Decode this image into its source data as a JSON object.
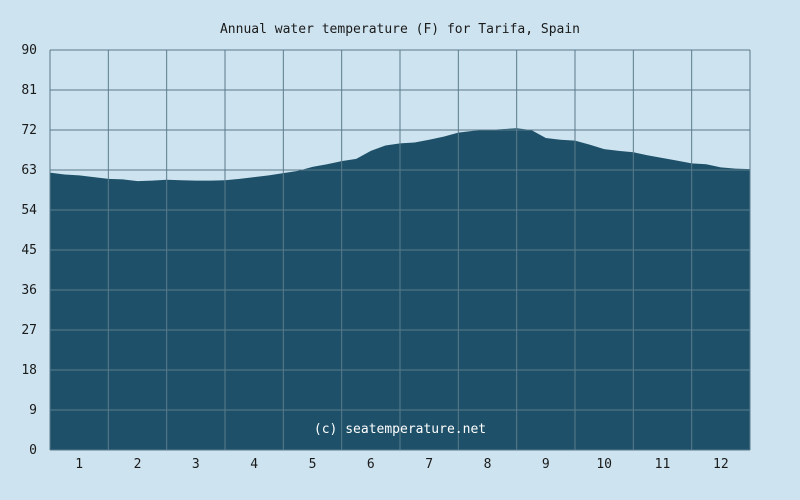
{
  "chart_data": {
    "type": "area",
    "title": "Annual water temperature (F) for Tarifa, Spain",
    "xlabel": "",
    "ylabel": "",
    "x_tick_labels": [
      "1",
      "2",
      "3",
      "4",
      "5",
      "6",
      "7",
      "8",
      "9",
      "10",
      "11",
      "12"
    ],
    "y_tick_labels": [
      "0",
      "9",
      "18",
      "27",
      "36",
      "45",
      "54",
      "63",
      "72",
      "81",
      "90"
    ],
    "ylim": [
      0,
      90
    ],
    "xlim": [
      0.5,
      12.5
    ],
    "grid": true,
    "series": [
      {
        "x": [
          0.5,
          0.75,
          1.0,
          1.25,
          1.5,
          1.75,
          2.0,
          2.25,
          2.5,
          2.75,
          3.0,
          3.25,
          3.5,
          3.75,
          4.0,
          4.25,
          4.5,
          4.75,
          5.0,
          5.25,
          5.5,
          5.75,
          6.0,
          6.25,
          6.5,
          6.75,
          7.0,
          7.25,
          7.5,
          7.75,
          8.0,
          8.25,
          8.5,
          8.75,
          9.0,
          9.25,
          9.5,
          9.75,
          10.0,
          10.25,
          10.5,
          10.75,
          11.0,
          11.25,
          11.5,
          11.75,
          12.0,
          12.25,
          12.5
        ],
        "values": [
          62.4,
          62.0,
          61.8,
          61.4,
          61.0,
          60.9,
          60.5,
          60.6,
          60.8,
          60.7,
          60.6,
          60.6,
          60.7,
          61.0,
          61.4,
          61.8,
          62.3,
          62.8,
          63.7,
          64.3,
          65.0,
          65.5,
          67.3,
          68.5,
          69.0,
          69.2,
          69.8,
          70.5,
          71.4,
          71.8,
          72.0,
          72.2,
          72.4,
          72.0,
          70.2,
          69.8,
          69.6,
          68.7,
          67.7,
          67.3,
          67.0,
          66.3,
          65.7,
          65.1,
          64.5,
          64.3,
          63.6,
          63.3,
          63.2
        ]
      }
    ],
    "colors": {
      "background": "#cde3ef",
      "area_fill": "#1e5169",
      "grid": "#5a7a8c",
      "text": "#1a1a1a",
      "watermark_text": "#ffffff"
    }
  },
  "watermark": "(c) seatemperature.net"
}
